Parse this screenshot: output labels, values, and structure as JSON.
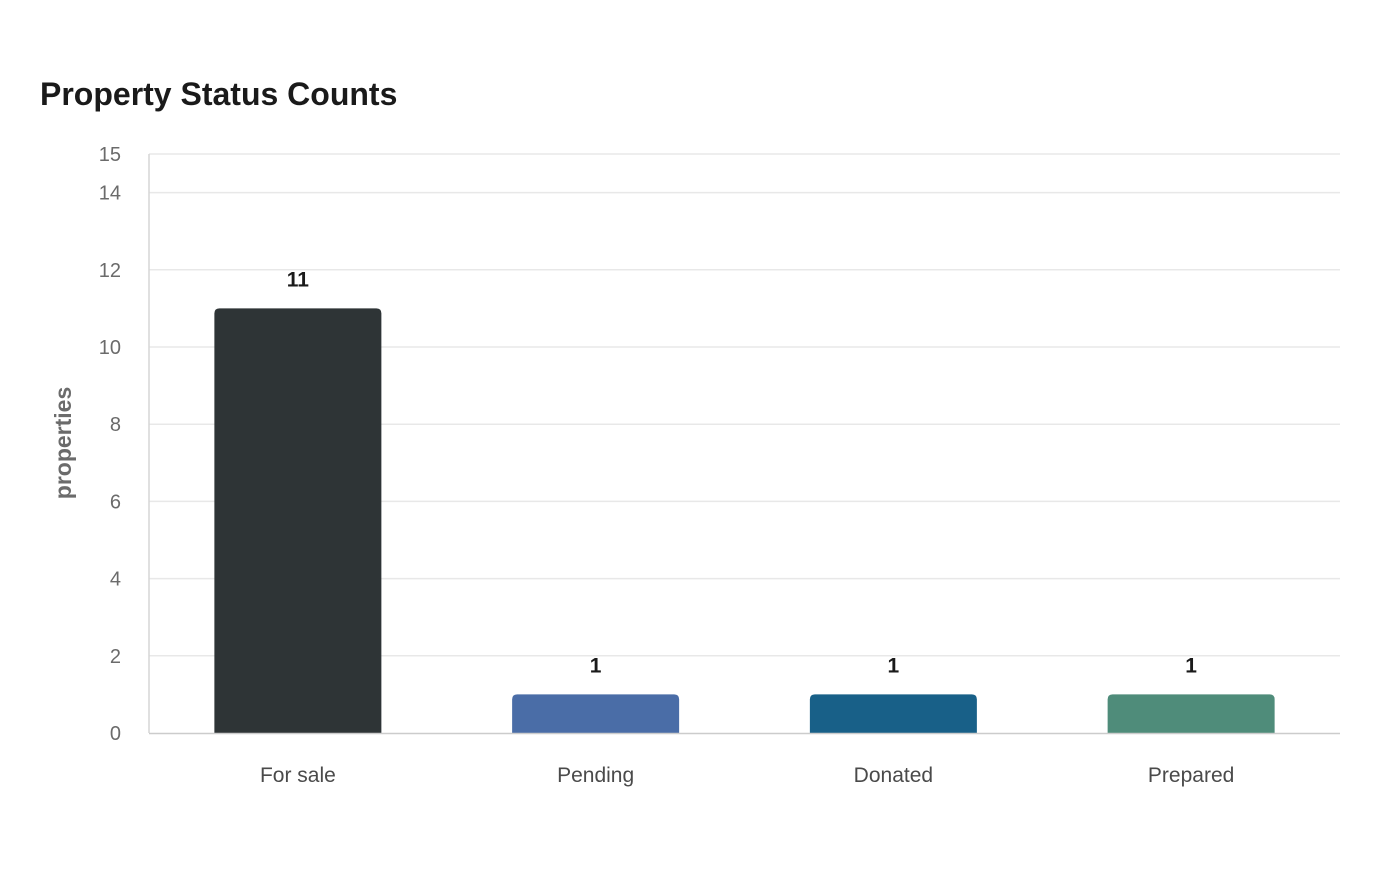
{
  "chart_data": {
    "type": "bar",
    "title": "Property Status Counts",
    "xlabel": "",
    "ylabel": "properties",
    "categories": [
      "For sale",
      "Pending",
      "Donated",
      "Prepared"
    ],
    "values": [
      11,
      1,
      1,
      1
    ],
    "colors": [
      "#2e3436",
      "#4a6da7",
      "#186088",
      "#4f8c7a"
    ],
    "ylim": [
      0,
      15
    ],
    "yticks": [
      0,
      2,
      4,
      6,
      8,
      10,
      12,
      14,
      15
    ],
    "grid": true,
    "legend": "none"
  }
}
